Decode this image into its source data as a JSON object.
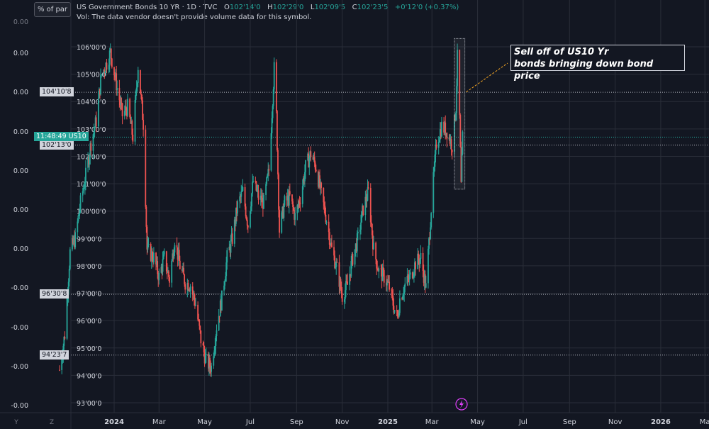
{
  "header": {
    "title": "US Government Bonds 10 YR · 1D · TVC",
    "open_label": "O",
    "open": "102'14'0",
    "high_label": "H",
    "high": "102'29'0",
    "low_label": "L",
    "low": "102'09'5",
    "close_label": "C",
    "close": "102'23'5",
    "change": "+0'12'0 (+0.37%)",
    "volume_note": "Vol: The data vendor doesn't provide volume data for this symbol."
  },
  "scale_button": "% of par",
  "left_axis_ticks": [
    "0.00",
    "0.00",
    "0.00",
    "0.00",
    "0.00",
    "0.00",
    "-0.00",
    "-0.00",
    "-0.00",
    "-0.00"
  ],
  "left_axis_extra": [
    "0.00",
    "-0.00"
  ],
  "price_labels": {
    "current_time": "11:48:49",
    "symbol": "US10",
    "level_1": "104'10'8",
    "level_2": "102'13'0",
    "level_3": "96'30'8",
    "level_4": "94'23'7"
  },
  "annotation": {
    "line1": "Sell off of US10 Yr",
    "line2": "bonds bringing down bond price"
  },
  "bottom_buttons": {
    "y": "Y",
    "z": "Z"
  },
  "colors": {
    "up": "#26a69a",
    "down": "#ef5350",
    "background": "#131722",
    "grid": "#2a2e39"
  },
  "chart_data": {
    "type": "candlestick",
    "y_unit": "price (points'32nds of par)",
    "y_ticks": [
      "106'00'0",
      "105'00'0",
      "104'00'0",
      "103'00'0",
      "102'00'0",
      "101'00'0",
      "100'00'0",
      "99'00'0",
      "98'00'0",
      "97'00'0",
      "96'00'0",
      "95'00'0",
      "94'00'0",
      "93'00'0"
    ],
    "ylim": [
      92.9,
      106.95
    ],
    "x_ticks": [
      "2024",
      "Mar",
      "May",
      "Jul",
      "Sep",
      "Nov",
      "2025",
      "Mar",
      "May",
      "Jul",
      "Sep",
      "Nov",
      "2026",
      "Ma"
    ],
    "series_close_path": [
      [
        "2023-10-20",
        94.2
      ],
      [
        "2023-10-27",
        95.5
      ],
      [
        "2023-11-03",
        98.5
      ],
      [
        "2023-11-10",
        99.0
      ],
      [
        "2023-11-17",
        100.3
      ],
      [
        "2023-11-24",
        101.3
      ],
      [
        "2023-12-01",
        102.5
      ],
      [
        "2023-12-08",
        103.3
      ],
      [
        "2023-12-15",
        105.0
      ],
      [
        "2023-12-22",
        105.4
      ],
      [
        "2023-12-27",
        105.8
      ],
      [
        "2024-01-05",
        104.5
      ],
      [
        "2024-01-12",
        103.5
      ],
      [
        "2024-01-19",
        103.8
      ],
      [
        "2024-01-26",
        102.7
      ],
      [
        "2024-02-02",
        105.3
      ],
      [
        "2024-02-09",
        103.2
      ],
      [
        "2024-02-14",
        98.6
      ],
      [
        "2024-02-23",
        98.3
      ],
      [
        "2024-03-01",
        97.6
      ],
      [
        "2024-03-08",
        98.3
      ],
      [
        "2024-03-15",
        97.5
      ],
      [
        "2024-03-22",
        99.0
      ],
      [
        "2024-03-29",
        98.0
      ],
      [
        "2024-04-05",
        97.4
      ],
      [
        "2024-04-12",
        97.3
      ],
      [
        "2024-04-19",
        96.6
      ],
      [
        "2024-04-26",
        95.3
      ],
      [
        "2024-05-03",
        94.5
      ],
      [
        "2024-05-10",
        94.3
      ],
      [
        "2024-05-17",
        95.8
      ],
      [
        "2024-05-24",
        96.8
      ],
      [
        "2024-05-31",
        98.3
      ],
      [
        "2024-06-07",
        99.0
      ],
      [
        "2024-06-14",
        100.2
      ],
      [
        "2024-06-21",
        100.7
      ],
      [
        "2024-06-28",
        99.5
      ],
      [
        "2024-07-05",
        101.1
      ],
      [
        "2024-07-12",
        100.5
      ],
      [
        "2024-07-19",
        100.3
      ],
      [
        "2024-07-26",
        101.5
      ],
      [
        "2024-08-02",
        105.2
      ],
      [
        "2024-08-05",
        103.5
      ],
      [
        "2024-08-09",
        99.3
      ],
      [
        "2024-08-16",
        100.3
      ],
      [
        "2024-08-23",
        100.5
      ],
      [
        "2024-08-30",
        99.8
      ],
      [
        "2024-09-06",
        100.5
      ],
      [
        "2024-09-13",
        101.6
      ],
      [
        "2024-09-20",
        102.1
      ],
      [
        "2024-09-27",
        101.6
      ],
      [
        "2024-10-04",
        100.6
      ],
      [
        "2024-10-11",
        99.7
      ],
      [
        "2024-10-18",
        98.6
      ],
      [
        "2024-10-25",
        97.9
      ],
      [
        "2024-11-01",
        96.9
      ],
      [
        "2024-11-08",
        97.3
      ],
      [
        "2024-11-15",
        98.3
      ],
      [
        "2024-11-22",
        99.0
      ],
      [
        "2024-11-29",
        100.1
      ],
      [
        "2024-12-06",
        100.7
      ],
      [
        "2024-12-13",
        98.6
      ],
      [
        "2024-12-20",
        97.8
      ],
      [
        "2024-12-27",
        97.6
      ],
      [
        "2025-01-03",
        97.2
      ],
      [
        "2025-01-10",
        96.4
      ],
      [
        "2025-01-14",
        96.1
      ],
      [
        "2025-01-17",
        96.8
      ],
      [
        "2025-01-24",
        97.3
      ],
      [
        "2025-01-31",
        97.6
      ],
      [
        "2025-02-07",
        98.1
      ],
      [
        "2025-02-14",
        98.3
      ],
      [
        "2025-02-21",
        97.2
      ],
      [
        "2025-02-28",
        100.1
      ],
      [
        "2025-03-07",
        102.5
      ],
      [
        "2025-03-14",
        103.1
      ],
      [
        "2025-03-21",
        102.9
      ],
      [
        "2025-03-28",
        102.4
      ],
      [
        "2025-04-02",
        103.8
      ],
      [
        "2025-04-04",
        105.6
      ],
      [
        "2025-04-07",
        103.4
      ],
      [
        "2025-04-09",
        100.9
      ],
      [
        "2025-04-11",
        102.7
      ]
    ],
    "annotation_box_range": {
      "x": [
        "2025-03-31",
        "2025-04-14"
      ],
      "y": [
        100.8,
        106.3
      ]
    },
    "horizontal_levels": [
      104.34,
      102.41,
      96.96,
      94.74
    ],
    "current_price": 102.7
  }
}
